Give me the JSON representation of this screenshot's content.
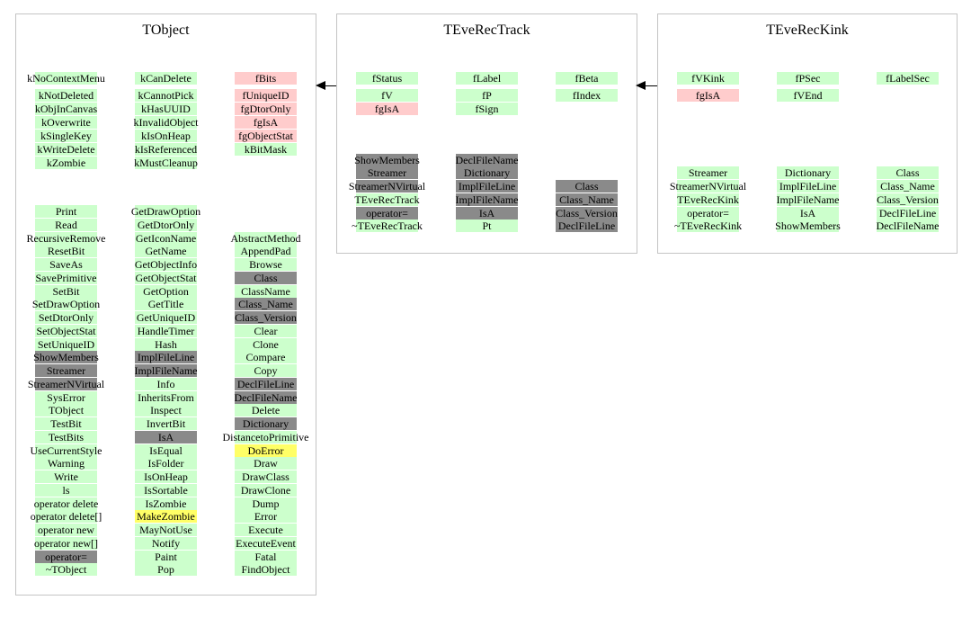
{
  "diagram": {
    "background": "#ffffff",
    "colors": {
      "green": "#ccffcc",
      "red": "#ffcccc",
      "gray": "#8a8a8a",
      "yellow": "#ffff66",
      "border": "#c4c4c4",
      "arrow": "#000000"
    },
    "classes": [
      {
        "title": "TObject",
        "sections": [
          {
            "name": "data-members",
            "columns": [
              [
                {
                  "label": "kNoContextMenu",
                  "color": "green"
                },
                {
                  "label": "kNotDeleted",
                  "color": "green"
                },
                {
                  "label": "kObjInCanvas",
                  "color": "green"
                },
                {
                  "label": "kOverwrite",
                  "color": "green"
                },
                {
                  "label": "kSingleKey",
                  "color": "green"
                },
                {
                  "label": "kWriteDelete",
                  "color": "green"
                },
                {
                  "label": "kZombie",
                  "color": "green"
                }
              ],
              [
                {
                  "label": "kCanDelete",
                  "color": "green"
                },
                {
                  "label": "kCannotPick",
                  "color": "green"
                },
                {
                  "label": "kHasUUID",
                  "color": "green"
                },
                {
                  "label": "kInvalidObject",
                  "color": "green"
                },
                {
                  "label": "kIsOnHeap",
                  "color": "green"
                },
                {
                  "label": "kIsReferenced",
                  "color": "green"
                },
                {
                  "label": "kMustCleanup",
                  "color": "green"
                }
              ],
              [
                {
                  "label": "fBits",
                  "color": "red"
                },
                {
                  "label": "fUniqueID",
                  "color": "red"
                },
                {
                  "label": "fgDtorOnly",
                  "color": "red"
                },
                {
                  "label": "fgIsA",
                  "color": "red"
                },
                {
                  "label": "fgObjectStat",
                  "color": "red"
                },
                {
                  "label": "kBitMask",
                  "color": "green"
                }
              ]
            ]
          },
          {
            "name": "methods",
            "columns": [
              [
                {
                  "label": "Print",
                  "color": "green"
                },
                {
                  "label": "Read",
                  "color": "green"
                },
                {
                  "label": "RecursiveRemove",
                  "color": "green"
                },
                {
                  "label": "ResetBit",
                  "color": "green"
                },
                {
                  "label": "SaveAs",
                  "color": "green"
                },
                {
                  "label": "SavePrimitive",
                  "color": "green"
                },
                {
                  "label": "SetBit",
                  "color": "green"
                },
                {
                  "label": "SetDrawOption",
                  "color": "green"
                },
                {
                  "label": "SetDtorOnly",
                  "color": "green"
                },
                {
                  "label": "SetObjectStat",
                  "color": "green"
                },
                {
                  "label": "SetUniqueID",
                  "color": "green"
                },
                {
                  "label": "ShowMembers",
                  "color": "gray"
                },
                {
                  "label": "Streamer",
                  "color": "gray"
                },
                {
                  "label": "StreamerNVirtual",
                  "color": "gray"
                },
                {
                  "label": "SysError",
                  "color": "green"
                },
                {
                  "label": "TObject",
                  "color": "green"
                },
                {
                  "label": "TestBit",
                  "color": "green"
                },
                {
                  "label": "TestBits",
                  "color": "green"
                },
                {
                  "label": "UseCurrentStyle",
                  "color": "green"
                },
                {
                  "label": "Warning",
                  "color": "green"
                },
                {
                  "label": "Write",
                  "color": "green"
                },
                {
                  "label": "ls",
                  "color": "green"
                },
                {
                  "label": "operator delete",
                  "color": "green"
                },
                {
                  "label": "operator delete[]",
                  "color": "green"
                },
                {
                  "label": "operator new",
                  "color": "green"
                },
                {
                  "label": "operator new[]",
                  "color": "green"
                },
                {
                  "label": "operator=",
                  "color": "gray"
                },
                {
                  "label": "~TObject",
                  "color": "green"
                }
              ],
              [
                {
                  "label": "GetDrawOption",
                  "color": "green"
                },
                {
                  "label": "GetDtorOnly",
                  "color": "green"
                },
                {
                  "label": "GetIconName",
                  "color": "green"
                },
                {
                  "label": "GetName",
                  "color": "green"
                },
                {
                  "label": "GetObjectInfo",
                  "color": "green"
                },
                {
                  "label": "GetObjectStat",
                  "color": "green"
                },
                {
                  "label": "GetOption",
                  "color": "green"
                },
                {
                  "label": "GetTitle",
                  "color": "green"
                },
                {
                  "label": "GetUniqueID",
                  "color": "green"
                },
                {
                  "label": "HandleTimer",
                  "color": "green"
                },
                {
                  "label": "Hash",
                  "color": "green"
                },
                {
                  "label": "ImplFileLine",
                  "color": "gray"
                },
                {
                  "label": "ImplFileName",
                  "color": "gray"
                },
                {
                  "label": "Info",
                  "color": "green"
                },
                {
                  "label": "InheritsFrom",
                  "color": "green"
                },
                {
                  "label": "Inspect",
                  "color": "green"
                },
                {
                  "label": "InvertBit",
                  "color": "green"
                },
                {
                  "label": "IsA",
                  "color": "gray"
                },
                {
                  "label": "IsEqual",
                  "color": "green"
                },
                {
                  "label": "IsFolder",
                  "color": "green"
                },
                {
                  "label": "IsOnHeap",
                  "color": "green"
                },
                {
                  "label": "IsSortable",
                  "color": "green"
                },
                {
                  "label": "IsZombie",
                  "color": "green"
                },
                {
                  "label": "MakeZombie",
                  "color": "yellow"
                },
                {
                  "label": "MayNotUse",
                  "color": "green"
                },
                {
                  "label": "Notify",
                  "color": "green"
                },
                {
                  "label": "Paint",
                  "color": "green"
                },
                {
                  "label": "Pop",
                  "color": "green"
                }
              ],
              [
                null,
                null,
                {
                  "label": "AbstractMethod",
                  "color": "green"
                },
                {
                  "label": "AppendPad",
                  "color": "green"
                },
                {
                  "label": "Browse",
                  "color": "green"
                },
                {
                  "label": "Class",
                  "color": "gray"
                },
                {
                  "label": "ClassName",
                  "color": "green"
                },
                {
                  "label": "Class_Name",
                  "color": "gray"
                },
                {
                  "label": "Class_Version",
                  "color": "gray"
                },
                {
                  "label": "Clear",
                  "color": "green"
                },
                {
                  "label": "Clone",
                  "color": "green"
                },
                {
                  "label": "Compare",
                  "color": "green"
                },
                {
                  "label": "Copy",
                  "color": "green"
                },
                {
                  "label": "DeclFileLine",
                  "color": "gray"
                },
                {
                  "label": "DeclFileName",
                  "color": "gray"
                },
                {
                  "label": "Delete",
                  "color": "green"
                },
                {
                  "label": "Dictionary",
                  "color": "gray"
                },
                {
                  "label": "DistancetoPrimitive",
                  "color": "green"
                },
                {
                  "label": "DoError",
                  "color": "yellow"
                },
                {
                  "label": "Draw",
                  "color": "green"
                },
                {
                  "label": "DrawClass",
                  "color": "green"
                },
                {
                  "label": "DrawClone",
                  "color": "green"
                },
                {
                  "label": "Dump",
                  "color": "green"
                },
                {
                  "label": "Error",
                  "color": "green"
                },
                {
                  "label": "Execute",
                  "color": "green"
                },
                {
                  "label": "ExecuteEvent",
                  "color": "green"
                },
                {
                  "label": "Fatal",
                  "color": "green"
                },
                {
                  "label": "FindObject",
                  "color": "green"
                }
              ]
            ]
          }
        ]
      },
      {
        "title": "TEveRecTrack",
        "sections": [
          {
            "name": "data-members",
            "columns": [
              [
                {
                  "label": "fStatus",
                  "color": "green"
                },
                {
                  "label": "fV",
                  "color": "green"
                },
                {
                  "label": "fgIsA",
                  "color": "red"
                }
              ],
              [
                {
                  "label": "fLabel",
                  "color": "green"
                },
                {
                  "label": "fP",
                  "color": "green"
                },
                {
                  "label": "fSign",
                  "color": "green"
                }
              ],
              [
                {
                  "label": "fBeta",
                  "color": "green"
                },
                {
                  "label": "fIndex",
                  "color": "green"
                }
              ]
            ]
          },
          {
            "name": "methods",
            "columns": [
              [
                {
                  "label": "ShowMembers",
                  "color": "gray"
                },
                {
                  "label": "Streamer",
                  "color": "gray"
                },
                {
                  "label": "StreamerNVirtual",
                  "color": "gray"
                },
                {
                  "label": "TEveRecTrack",
                  "color": "green"
                },
                {
                  "label": "operator=",
                  "color": "gray"
                },
                {
                  "label": "~TEveRecTrack",
                  "color": "green"
                }
              ],
              [
                {
                  "label": "DeclFileName",
                  "color": "gray"
                },
                {
                  "label": "Dictionary",
                  "color": "gray"
                },
                {
                  "label": "ImplFileLine",
                  "color": "gray"
                },
                {
                  "label": "ImplFileName",
                  "color": "gray"
                },
                {
                  "label": "IsA",
                  "color": "gray"
                },
                {
                  "label": "Pt",
                  "color": "green"
                }
              ],
              [
                null,
                null,
                {
                  "label": "Class",
                  "color": "gray"
                },
                {
                  "label": "Class_Name",
                  "color": "gray"
                },
                {
                  "label": "Class_Version",
                  "color": "gray"
                },
                {
                  "label": "DeclFileLine",
                  "color": "gray"
                }
              ]
            ]
          }
        ]
      },
      {
        "title": "TEveRecKink",
        "sections": [
          {
            "name": "data-members",
            "columns": [
              [
                {
                  "label": "fVKink",
                  "color": "green"
                },
                {
                  "label": "fgIsA",
                  "color": "red"
                }
              ],
              [
                {
                  "label": "fPSec",
                  "color": "green"
                },
                {
                  "label": "fVEnd",
                  "color": "green"
                }
              ],
              [
                {
                  "label": "fLabelSec",
                  "color": "green"
                }
              ]
            ]
          },
          {
            "name": "methods",
            "columns": [
              [
                {
                  "label": "Streamer",
                  "color": "green"
                },
                {
                  "label": "StreamerNVirtual",
                  "color": "green"
                },
                {
                  "label": "TEveRecKink",
                  "color": "green"
                },
                {
                  "label": "operator=",
                  "color": "green"
                },
                {
                  "label": "~TEveRecKink",
                  "color": "green"
                }
              ],
              [
                {
                  "label": "Dictionary",
                  "color": "green"
                },
                {
                  "label": "ImplFileLine",
                  "color": "green"
                },
                {
                  "label": "ImplFileName",
                  "color": "green"
                },
                {
                  "label": "IsA",
                  "color": "green"
                },
                {
                  "label": "ShowMembers",
                  "color": "green"
                }
              ],
              [
                {
                  "label": "Class",
                  "color": "green"
                },
                {
                  "label": "Class_Name",
                  "color": "green"
                },
                {
                  "label": "Class_Version",
                  "color": "green"
                },
                {
                  "label": "DeclFileLine",
                  "color": "green"
                },
                {
                  "label": "DeclFileName",
                  "color": "green"
                }
              ]
            ]
          }
        ]
      }
    ],
    "arrows": [
      {
        "from": "TEveRecTrack",
        "to": "TObject"
      },
      {
        "from": "TEveRecKink",
        "to": "TEveRecTrack"
      }
    ]
  }
}
